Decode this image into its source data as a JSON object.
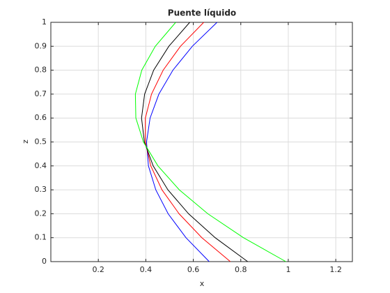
{
  "chart_data": {
    "type": "line",
    "title": "Puente líquido",
    "x_label": "x",
    "y_label": "z",
    "xlim": [
      0,
      1.27
    ],
    "xticks": [
      0.2,
      0.4,
      0.6,
      0.8,
      1,
      1.2
    ],
    "ylim": [
      0,
      1
    ],
    "yticks": [
      0,
      0.1,
      0.2,
      0.3,
      0.4,
      0.5,
      0.6,
      0.7,
      0.8,
      0.9,
      1
    ],
    "grid": true,
    "series": [
      {
        "color": "#0000ff",
        "x": [
          0.667,
          0.569,
          0.494,
          0.442,
          0.411,
          0.403,
          0.418,
          0.455,
          0.514,
          0.596,
          0.7
        ],
        "values": [
          0,
          0.1,
          0.2,
          0.3,
          0.4,
          0.5,
          0.6,
          0.7,
          0.8,
          0.9,
          1
        ]
      },
      {
        "color": "#ff0000",
        "x": [
          0.756,
          0.636,
          0.54,
          0.468,
          0.421,
          0.398,
          0.398,
          0.424,
          0.473,
          0.546,
          0.644
        ],
        "values": [
          0,
          0.1,
          0.2,
          0.3,
          0.4,
          0.5,
          0.6,
          0.7,
          0.8,
          0.9,
          1
        ]
      },
      {
        "color": "#000000",
        "x": [
          0.829,
          0.692,
          0.58,
          0.493,
          0.431,
          0.394,
          0.382,
          0.395,
          0.433,
          0.497,
          0.585
        ],
        "values": [
          0,
          0.1,
          0.2,
          0.3,
          0.4,
          0.5,
          0.6,
          0.7,
          0.8,
          0.9,
          1
        ]
      },
      {
        "color": "#00ff00",
        "x": [
          0.99,
          0.811,
          0.661,
          0.541,
          0.451,
          0.39,
          0.358,
          0.356,
          0.383,
          0.44,
          0.526
        ],
        "values": [
          0,
          0.1,
          0.2,
          0.3,
          0.4,
          0.5,
          0.6,
          0.7,
          0.8,
          0.9,
          1
        ]
      }
    ]
  }
}
